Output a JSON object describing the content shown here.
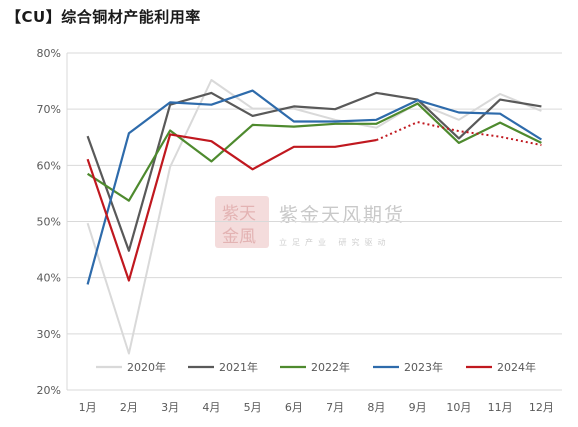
{
  "title": "【CU】综合铜材产能利用率",
  "watermark": {
    "name": "紫金天风期货",
    "slogan": "立足产业  研究驱动"
  },
  "chart_data": {
    "type": "line",
    "title": "【CU】综合铜材产能利用率",
    "xlabel": "",
    "ylabel": "",
    "categories": [
      "1月",
      "2月",
      "3月",
      "4月",
      "5月",
      "6月",
      "7月",
      "8月",
      "9月",
      "10月",
      "11月",
      "12月"
    ],
    "ylim": [
      0.2,
      0.8
    ],
    "yticks": [
      "20%",
      "30%",
      "40%",
      "50%",
      "60%",
      "70%",
      "80%"
    ],
    "ytick_values": [
      0.2,
      0.3,
      0.4,
      0.5,
      0.6,
      0.7,
      0.8
    ],
    "grid": true,
    "legend": "bottom",
    "series": [
      {
        "name": "2020年",
        "color": "#d9d9d9",
        "values": [
          0.497,
          0.265,
          0.597,
          0.752,
          0.701,
          0.701,
          0.681,
          0.667,
          0.711,
          0.681,
          0.727,
          0.697
        ]
      },
      {
        "name": "2021年",
        "color": "#595959",
        "values": [
          0.652,
          0.448,
          0.708,
          0.729,
          0.688,
          0.705,
          0.7,
          0.729,
          0.717,
          0.648,
          0.717,
          0.705
        ]
      },
      {
        "name": "2022年",
        "color": "#4e8a2e",
        "values": [
          0.585,
          0.537,
          0.662,
          0.607,
          0.672,
          0.669,
          0.674,
          0.674,
          0.71,
          0.64,
          0.676,
          0.64
        ]
      },
      {
        "name": "2023年",
        "color": "#2e6bab",
        "values": [
          0.388,
          0.657,
          0.712,
          0.708,
          0.733,
          0.678,
          0.678,
          0.681,
          0.716,
          0.694,
          0.692,
          0.646
        ]
      },
      {
        "name": "2024年",
        "color": "#c0181f",
        "values": [
          0.611,
          0.395,
          0.655,
          0.643,
          0.593,
          0.633,
          0.633,
          0.645,
          null,
          null,
          null,
          null
        ],
        "forecast_values": [
          null,
          null,
          null,
          null,
          null,
          null,
          null,
          0.645,
          0.677,
          0.661,
          0.651,
          0.636
        ]
      }
    ]
  }
}
